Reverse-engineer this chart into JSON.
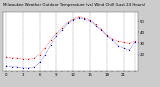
{
  "title": "Milwaukee Weather Outdoor Temperature (vs) Wind Chill (Last 24 Hours)",
  "background_color": "#cccccc",
  "plot_background": "#ffffff",
  "temp_color": "#dd0000",
  "windchill_color": "#0000cc",
  "hours": [
    0,
    1,
    2,
    3,
    4,
    5,
    6,
    7,
    8,
    9,
    10,
    11,
    12,
    13,
    14,
    15,
    16,
    17,
    18,
    19,
    20,
    21,
    22,
    23
  ],
  "temp": [
    18,
    17,
    17,
    16,
    16,
    17,
    20,
    26,
    33,
    39,
    44,
    49,
    52,
    54,
    53,
    51,
    47,
    43,
    38,
    34,
    32,
    31,
    30,
    32
  ],
  "windchill": [
    10,
    9,
    9,
    8,
    8,
    9,
    13,
    20,
    29,
    37,
    42,
    48,
    51,
    53,
    52,
    50,
    46,
    42,
    37,
    33,
    28,
    26,
    24,
    31
  ],
  "ylim": [
    5,
    58
  ],
  "yticks": [
    20,
    30,
    40,
    50
  ],
  "grid_positions": [
    0,
    3,
    6,
    9,
    12,
    15,
    18,
    21,
    23
  ],
  "grid_color": "#888888",
  "title_fontsize": 2.8,
  "tick_fontsize": 2.8,
  "ylabel_fontsize": 2.8,
  "marker_size": 1.8,
  "line_width": 0.4
}
